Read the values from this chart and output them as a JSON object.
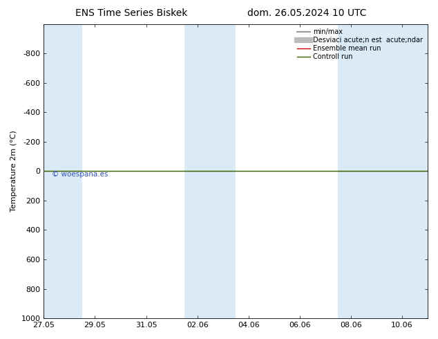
{
  "title_left": "ENS Time Series Biskek",
  "title_right": "dom. 26.05.2024 10 UTC",
  "ylabel": "Temperature 2m (°C)",
  "ylim_bottom": 1000,
  "ylim_top": -1000,
  "yticks": [
    -800,
    -600,
    -400,
    -200,
    0,
    200,
    400,
    600,
    800,
    1000
  ],
  "xlim_start": 0,
  "xlim_end": 15,
  "xtick_positions": [
    0,
    2,
    4,
    6,
    8,
    10,
    12,
    14
  ],
  "xtick_labels": [
    "27.05",
    "29.05",
    "31.05",
    "02.06",
    "04.06",
    "06.06",
    "08.06",
    "10.06"
  ],
  "shaded_bands": [
    [
      0,
      1.5
    ],
    [
      5.5,
      6.5
    ],
    [
      6.5,
      7.5
    ],
    [
      11.5,
      12.5
    ],
    [
      12.5,
      15
    ]
  ],
  "shade_color": "#daeaf7",
  "green_line_y": 0,
  "red_line_y": 0,
  "bg_color": "#ffffff",
  "green_line_color": "#336600",
  "red_line_color": "#cc0000",
  "watermark_text": "© woespana.es",
  "watermark_color": "#3355bb",
  "legend_items": [
    {
      "label": "min/max",
      "color": "#999999",
      "lw": 1.5
    },
    {
      "label": "Desviaci acute;n est  acute;ndar",
      "color": "#bbbbbb",
      "lw": 6
    },
    {
      "label": "Ensemble mean run",
      "color": "#cc0000",
      "lw": 1
    },
    {
      "label": "Controll run",
      "color": "#336600",
      "lw": 1
    }
  ],
  "title_fontsize": 10,
  "axis_fontsize": 8,
  "tick_fontsize": 8,
  "legend_fontsize": 7
}
